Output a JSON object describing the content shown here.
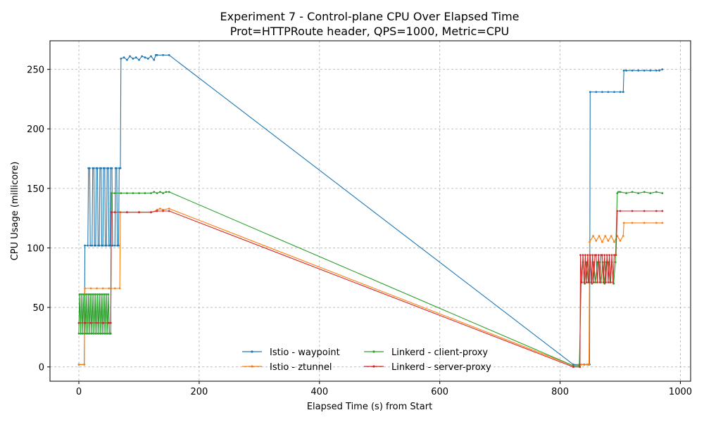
{
  "chart_data": {
    "type": "line",
    "title": "Experiment 7 - Control-plane CPU Over Elapsed Time",
    "subtitle": "Prot=HTTPRoute header, QPS=1000, Metric=CPU",
    "xlabel": "Elapsed Time (s) from Start",
    "ylabel": "CPU Usage (millicore)",
    "xlim": [
      -48,
      1017
    ],
    "ylim": [
      -12,
      274
    ],
    "xticks": [
      0,
      200,
      400,
      600,
      800,
      1000
    ],
    "yticks": [
      0,
      50,
      100,
      150,
      200,
      250
    ],
    "grid": true,
    "legend_position": "lower-center",
    "series": [
      {
        "name": "Istio - waypoint",
        "color": "#1f77b4",
        "x": [
          0,
          9,
          10,
          15,
          16,
          18,
          19,
          22,
          23,
          25,
          26,
          28,
          29,
          31,
          32,
          34,
          35,
          37,
          38,
          40,
          41,
          43,
          44,
          46,
          47,
          49,
          50,
          52,
          53,
          55,
          56,
          60,
          61,
          63,
          64,
          66,
          67,
          69,
          70,
          75,
          80,
          85,
          90,
          95,
          100,
          105,
          110,
          115,
          120,
          125,
          128,
          130,
          140,
          150,
          822,
          832,
          840,
          847,
          849,
          850,
          860,
          870,
          880,
          890,
          900,
          905,
          906,
          910,
          920,
          930,
          940,
          950,
          960,
          965,
          970
        ],
        "y": [
          2,
          2,
          102,
          102,
          167,
          167,
          102,
          102,
          167,
          167,
          102,
          102,
          167,
          167,
          102,
          102,
          167,
          167,
          102,
          102,
          167,
          167,
          102,
          102,
          167,
          167,
          102,
          102,
          167,
          167,
          102,
          102,
          167,
          167,
          102,
          102,
          167,
          167,
          259,
          260,
          258,
          261,
          259,
          260,
          258,
          261,
          260,
          259,
          261,
          258,
          262,
          262,
          262,
          262,
          2,
          2,
          2,
          2,
          2,
          231,
          231,
          231,
          231,
          231,
          231,
          231,
          249,
          249,
          249,
          249,
          249,
          249,
          249,
          249,
          250
        ]
      },
      {
        "name": "Istio - ztunnel",
        "color": "#ff7f0e",
        "x": [
          0,
          9,
          10,
          20,
          30,
          40,
          50,
          60,
          68,
          69,
          80,
          100,
          120,
          128,
          130,
          135,
          140,
          150,
          822,
          835,
          845,
          848,
          849,
          855,
          860,
          865,
          870,
          875,
          880,
          885,
          890,
          895,
          900,
          905,
          906,
          920,
          940,
          960,
          970
        ],
        "y": [
          2,
          2,
          66,
          66,
          66,
          66,
          66,
          66,
          66,
          130,
          130,
          130,
          130,
          131,
          132,
          133,
          132,
          133,
          1,
          2,
          2,
          2,
          105,
          110,
          106,
          110,
          105,
          110,
          106,
          110,
          105,
          110,
          106,
          110,
          121,
          121,
          121,
          121,
          121
        ]
      },
      {
        "name": "Linkerd - client-proxy",
        "color": "#2ca02c",
        "x": [
          0,
          1,
          3,
          4,
          6,
          7,
          9,
          10,
          12,
          13,
          15,
          16,
          18,
          19,
          21,
          22,
          24,
          25,
          27,
          28,
          30,
          31,
          33,
          34,
          36,
          37,
          39,
          40,
          42,
          43,
          45,
          46,
          48,
          49,
          51,
          52,
          53,
          54,
          60,
          70,
          80,
          90,
          100,
          110,
          120,
          125,
          130,
          135,
          140,
          145,
          150,
          822,
          832,
          835,
          838,
          841,
          844,
          847,
          850,
          853,
          856,
          859,
          862,
          865,
          868,
          871,
          874,
          877,
          880,
          883,
          886,
          889,
          892,
          895,
          897,
          900,
          910,
          920,
          930,
          940,
          950,
          960,
          970
        ],
        "y": [
          28,
          61,
          28,
          61,
          28,
          61,
          28,
          61,
          28,
          61,
          28,
          61,
          28,
          61,
          28,
          61,
          28,
          61,
          28,
          61,
          28,
          61,
          28,
          61,
          28,
          61,
          28,
          61,
          28,
          61,
          28,
          61,
          28,
          61,
          28,
          28,
          28,
          146,
          146,
          146,
          146,
          146,
          146,
          146,
          146,
          147,
          146,
          147,
          146,
          147,
          147,
          1,
          1,
          71,
          88,
          70,
          88,
          71,
          88,
          70,
          88,
          71,
          88,
          88,
          71,
          88,
          70,
          88,
          88,
          71,
          88,
          70,
          88,
          146,
          147,
          147,
          146,
          147,
          146,
          147,
          146,
          147,
          146
        ]
      },
      {
        "name": "Linkerd - server-proxy",
        "color": "#d62728",
        "x": [
          0,
          10,
          20,
          30,
          40,
          50,
          53,
          54,
          60,
          80,
          100,
          120,
          130,
          140,
          150,
          822,
          833,
          834,
          836,
          838,
          840,
          842,
          844,
          846,
          848,
          850,
          852,
          854,
          856,
          858,
          860,
          862,
          864,
          866,
          868,
          870,
          872,
          874,
          876,
          878,
          880,
          882,
          884,
          886,
          888,
          890,
          893,
          895,
          900,
          920,
          940,
          960,
          970
        ],
        "y": [
          37,
          37,
          37,
          37,
          37,
          37,
          37,
          130,
          130,
          130,
          130,
          130,
          131,
          131,
          131,
          0,
          0,
          94,
          71,
          94,
          71,
          94,
          71,
          94,
          71,
          94,
          71,
          94,
          71,
          94,
          94,
          71,
          94,
          71,
          94,
          94,
          71,
          94,
          71,
          94,
          71,
          94,
          71,
          94,
          71,
          94,
          94,
          131,
          131,
          131,
          131,
          131,
          131
        ]
      }
    ]
  }
}
